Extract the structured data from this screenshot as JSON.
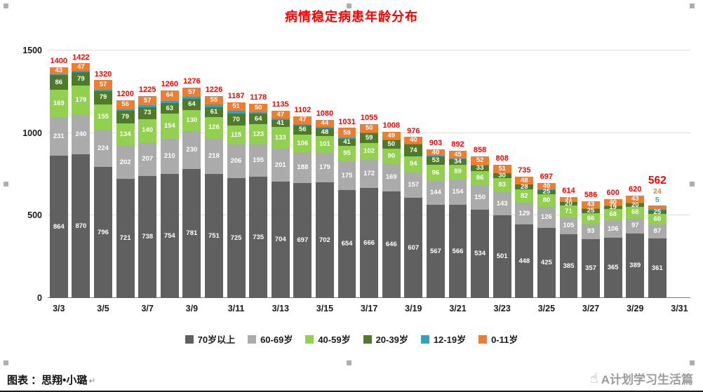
{
  "chart_data": {
    "type": "bar",
    "stacked": true,
    "title": "病情稳定病患年龄分布",
    "ylim": [
      0,
      1500
    ],
    "yticks": [
      0,
      500,
      1000,
      1500
    ],
    "grid": "horizontal",
    "legend_position": "bottom",
    "x_slots": 29,
    "x_tick_labels": [
      "3/3",
      "3/5",
      "3/7",
      "3/9",
      "3/11",
      "3/13",
      "3/15",
      "3/17",
      "3/19",
      "3/21",
      "3/23",
      "3/25",
      "3/27",
      "3/29",
      "3/31"
    ],
    "categories": [
      "3/3",
      "3/4",
      "3/5",
      "3/6",
      "3/7",
      "3/8",
      "3/9",
      "3/10",
      "3/11",
      "3/12",
      "3/13",
      "3/14",
      "3/15",
      "3/16",
      "3/17",
      "3/18",
      "3/19",
      "3/20",
      "3/21",
      "3/22",
      "3/23",
      "3/24",
      "3/25",
      "3/26",
      "3/27",
      "3/28",
      "3/29",
      "3/30"
    ],
    "series": [
      {
        "name": "70岁以上",
        "color": "#606060",
        "values": [
          864,
          870,
          796,
          721,
          738,
          754,
          781,
          751,
          725,
          735,
          704,
          697,
          702,
          654,
          666,
          646,
          607,
          567,
          566,
          534,
          501,
          448,
          425,
          385,
          357,
          365,
          389,
          361
        ]
      },
      {
        "name": "60-69岁",
        "color": "#ABABAB",
        "values": [
          231,
          240,
          224,
          202,
          207,
          210,
          230,
          218,
          206,
          195,
          201,
          188,
          179,
          175,
          172,
          169,
          157,
          144,
          154,
          150,
          143,
          129,
          126,
          105,
          93,
          106,
          97,
          87
        ]
      },
      {
        "name": "40-59岁",
        "color": "#92D050",
        "values": [
          169,
          179,
          155,
          134,
          140,
          154,
          130,
          126,
          115,
          123,
          133,
          106,
          101,
          95,
          102,
          90,
          94,
          96,
          89,
          86,
          83,
          82,
          80,
          71,
          66,
          68,
          68,
          60
        ]
      },
      {
        "name": "20-39岁",
        "color": "#4E7B27",
        "values": [
          86,
          79,
          79,
          79,
          73,
          63,
          64,
          61,
          70,
          64,
          41,
          56,
          48,
          41,
          59,
          50,
          74,
          53,
          34,
          33,
          30,
          28,
          25,
          20,
          25,
          19,
          20,
          25
        ]
      },
      {
        "name": "12-19岁",
        "color": "#31A3C0",
        "values": [
          7,
          7,
          9,
          8,
          10,
          15,
          14,
          15,
          20,
          11,
          9,
          8,
          6,
          7,
          6,
          4,
          4,
          3,
          4,
          3,
          0,
          0,
          1,
          2,
          2,
          2,
          3,
          5
        ]
      },
      {
        "name": "0-11岁",
        "color": "#ED7D31",
        "values": [
          43,
          47,
          57,
          56,
          57,
          64,
          57,
          55,
          51,
          50,
          47,
          47,
          44,
          59,
          50,
          49,
          40,
          40,
          45,
          52,
          51,
          48,
          40,
          31,
          43,
          40,
          43,
          24
        ]
      }
    ],
    "totals": [
      1400,
      1422,
      1320,
      1200,
      1225,
      1260,
      1276,
      1226,
      1187,
      1178,
      1135,
      1102,
      1080,
      1031,
      1055,
      1008,
      976,
      903,
      892,
      858,
      808,
      735,
      697,
      614,
      586,
      600,
      620,
      562
    ],
    "total_label_color": "#FF0000",
    "last_bar_outside_labels": [
      {
        "value": 24,
        "color": "#ED7D31"
      },
      {
        "value": 5,
        "color": "#31A3C0"
      }
    ]
  },
  "footer": {
    "credit": "图表 ：思翔•小璐",
    "formatting_mark": "↵"
  },
  "watermark": {
    "text": "A计划学习生活篇",
    "icon_glyph": "☝"
  }
}
